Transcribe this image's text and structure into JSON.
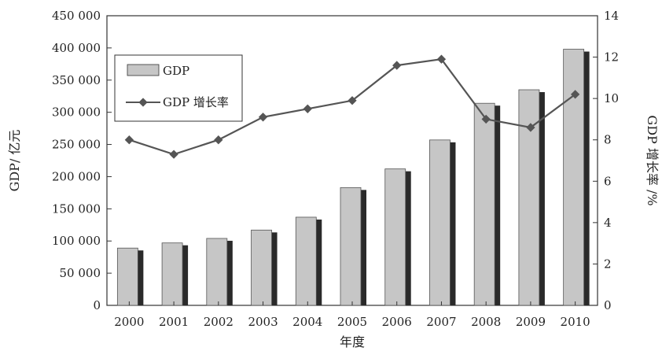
{
  "chart_data": {
    "type": "bar+line",
    "categories": [
      "2000",
      "2001",
      "2002",
      "2003",
      "2004",
      "2005",
      "2006",
      "2007",
      "2008",
      "2009",
      "2010"
    ],
    "series": [
      {
        "name": "GDP",
        "type": "bar",
        "axis": "left",
        "values": [
          89000,
          97000,
          104000,
          117000,
          137000,
          183000,
          212000,
          257000,
          314000,
          335000,
          398000
        ]
      },
      {
        "name": "GDP 增长率",
        "type": "line",
        "axis": "right",
        "values": [
          8.0,
          7.3,
          8.0,
          9.1,
          9.5,
          9.9,
          11.6,
          11.9,
          9.0,
          8.6,
          10.2
        ]
      }
    ],
    "xlabel": "年度",
    "ylabel_left": "GDP/ 亿元",
    "ylabel_right": "GDP 增长率 /%",
    "ylim_left": [
      0,
      450000
    ],
    "ylim_right": [
      0,
      14
    ],
    "yticks_left": [
      "0",
      "50 000",
      "100 000",
      "150 000",
      "200 000",
      "250 000",
      "300 000",
      "350 000",
      "400 000",
      "450 000"
    ],
    "yticks_right": [
      "0",
      "2",
      "4",
      "6",
      "8",
      "10",
      "12",
      "14"
    ],
    "grid": false,
    "legend_position": "top-left",
    "colors": {
      "bar_fill": "#c6c6c6",
      "bar_shadow": "#2a2a2a",
      "line": "#555555",
      "axis": "#333333"
    }
  }
}
